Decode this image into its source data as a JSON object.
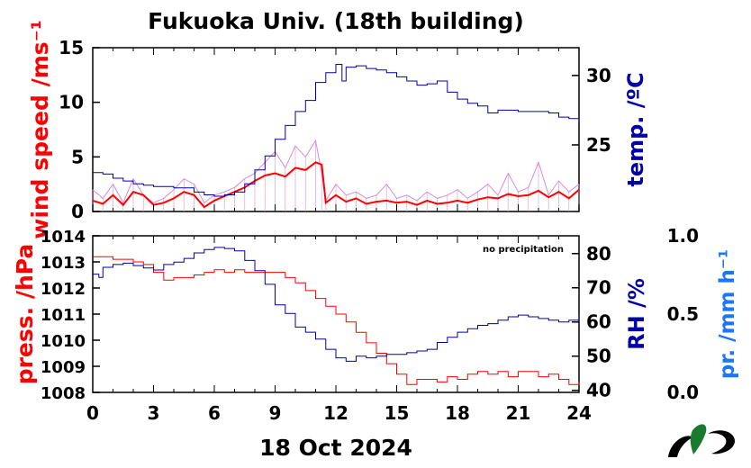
{
  "title": "Fukuoka Univ. (18th building)",
  "xlabel": "18 Oct 2024",
  "notice": "no precipitation",
  "colors": {
    "wind_label": "#ff0000",
    "wind_raw": "#d88ad8",
    "wind_mean": "#ff0000",
    "temp": "#0000aa",
    "press": "#ff0000",
    "rh": "#0000aa",
    "precip": "#1a75ff"
  },
  "chart_data": [
    {
      "type": "line",
      "panel": "top",
      "x_ticks": [
        0,
        3,
        6,
        9,
        12,
        15,
        18,
        21,
        24
      ],
      "xlim": [
        0,
        24
      ],
      "ylabel_left": "wind speed /ms⁻¹",
      "ylim_left": [
        0,
        15
      ],
      "yticks_left": [
        0,
        5,
        10,
        15
      ],
      "ylabel_right": "temp. /ºC",
      "ylim_right": [
        20.2,
        32.0
      ],
      "yticks_right": [
        25,
        30
      ],
      "grid": false,
      "series": [
        {
          "axis": "left",
          "style": "raw",
          "x": [
            0,
            0.5,
            1,
            1.5,
            2,
            2.5,
            3,
            3.5,
            4,
            4.5,
            5,
            5.5,
            6,
            6.5,
            7,
            7.5,
            8,
            8.5,
            9,
            9.5,
            10,
            10.5,
            11,
            11.3,
            11.5,
            12,
            12.5,
            13,
            13.5,
            14,
            14.5,
            15,
            15.5,
            16,
            16.5,
            17,
            17.5,
            18,
            18.5,
            19,
            19.5,
            20,
            20.5,
            21,
            21.5,
            22,
            22.5,
            23,
            23.5,
            24
          ],
          "y": [
            2.0,
            1.2,
            2.5,
            0.8,
            3.0,
            1.5,
            0.8,
            1.2,
            2.0,
            3.0,
            2.5,
            0.8,
            1.5,
            1.8,
            2.2,
            3.0,
            3.5,
            4.5,
            5.5,
            4.0,
            6.0,
            5.0,
            6.5,
            3.5,
            1.0,
            2.5,
            1.5,
            1.8,
            1.2,
            1.5,
            2.5,
            1.2,
            1.5,
            1.0,
            1.8,
            1.2,
            1.5,
            2.0,
            1.2,
            1.8,
            2.5,
            1.5,
            3.5,
            1.8,
            2.2,
            4.5,
            1.5,
            2.8,
            1.8,
            2.5
          ]
        },
        {
          "axis": "left",
          "style": "mean",
          "x": [
            0,
            0.5,
            1,
            1.5,
            2,
            2.5,
            3,
            3.5,
            4,
            4.5,
            5,
            5.5,
            6,
            6.5,
            7,
            7.5,
            8,
            8.5,
            9,
            9.5,
            10,
            10.5,
            11,
            11.3,
            11.5,
            12,
            12.5,
            13,
            13.5,
            14,
            14.5,
            15,
            15.5,
            16,
            16.5,
            17,
            17.5,
            18,
            18.5,
            19,
            19.5,
            20,
            20.5,
            21,
            21.5,
            22,
            22.5,
            23,
            23.5,
            24
          ],
          "y": [
            1.0,
            0.7,
            1.5,
            0.6,
            1.8,
            1.5,
            0.6,
            0.8,
            1.2,
            1.8,
            1.5,
            0.4,
            1.0,
            1.4,
            1.8,
            2.2,
            2.8,
            3.3,
            3.5,
            3.2,
            4.0,
            3.8,
            4.5,
            4.3,
            0.8,
            1.5,
            0.9,
            1.2,
            0.7,
            0.9,
            1.0,
            0.8,
            0.9,
            0.6,
            1.0,
            0.7,
            0.8,
            1.0,
            0.8,
            1.1,
            1.3,
            1.2,
            1.6,
            1.4,
            1.5,
            1.9,
            1.3,
            1.8,
            1.2,
            2.0
          ]
        },
        {
          "axis": "right",
          "style": "temp",
          "x": [
            0,
            0.5,
            1,
            1.5,
            2,
            2.5,
            3,
            3.5,
            4,
            4.5,
            5,
            5.5,
            6,
            6.5,
            7,
            7.5,
            8,
            8.5,
            9,
            9.5,
            10,
            10.5,
            11,
            11.5,
            12,
            12.3,
            12.5,
            13,
            13.5,
            14,
            14.5,
            15,
            15.5,
            16,
            16.5,
            17,
            17.5,
            18,
            18.5,
            19,
            19.5,
            20,
            20.5,
            21,
            21.5,
            22,
            22.5,
            23,
            23.5,
            24
          ],
          "y": [
            23.0,
            22.9,
            22.6,
            22.4,
            22.2,
            22.1,
            22.0,
            22.0,
            21.9,
            21.9,
            21.6,
            21.4,
            21.3,
            21.4,
            21.6,
            22.2,
            23.2,
            24.2,
            25.4,
            26.4,
            27.4,
            28.2,
            29.5,
            30.2,
            30.8,
            29.6,
            30.6,
            30.7,
            30.5,
            30.4,
            30.2,
            29.9,
            29.6,
            29.3,
            29.4,
            29.6,
            28.8,
            28.3,
            28.0,
            27.8,
            27.3,
            27.5,
            27.5,
            27.4,
            27.4,
            27.4,
            27.3,
            27.0,
            26.9,
            26.6
          ]
        }
      ]
    },
    {
      "type": "line",
      "panel": "bottom",
      "x_ticks": [
        0,
        3,
        6,
        9,
        12,
        15,
        18,
        21,
        24
      ],
      "xlim": [
        0,
        24
      ],
      "ylabel_left": "press. /hPa",
      "ylim_left": [
        1008,
        1014
      ],
      "yticks_left": [
        1008,
        1009,
        1010,
        1011,
        1012,
        1013,
        1014
      ],
      "ylabel_right": "RH /%",
      "ylim_right": [
        39.4,
        85.2
      ],
      "yticks_right": [
        40,
        50,
        60,
        70,
        80
      ],
      "ylabel_far_right": "pr. /mm h⁻¹",
      "ylim_far_right": [
        0.0,
        1.0
      ],
      "yticks_far_right": [
        "0.0",
        "0.5",
        "1.0"
      ],
      "grid": false,
      "series": [
        {
          "axis": "left",
          "style": "press",
          "x": [
            0,
            0.5,
            1,
            1.5,
            2,
            2.5,
            3,
            3.5,
            4,
            4.5,
            5,
            5.5,
            6,
            6.5,
            7,
            7.5,
            8,
            8.5,
            9,
            9.5,
            10,
            10.5,
            11,
            11.5,
            12,
            12.5,
            13,
            13.5,
            14,
            14.5,
            15,
            15.5,
            16,
            16.5,
            17,
            17.5,
            18,
            18.5,
            19,
            19.5,
            20,
            20.5,
            21,
            21.5,
            22,
            22.5,
            23,
            23.5,
            24
          ],
          "y": [
            1013.2,
            1013.2,
            1013.1,
            1013.1,
            1013.0,
            1012.9,
            1012.6,
            1012.3,
            1012.4,
            1012.4,
            1012.5,
            1012.6,
            1012.7,
            1012.6,
            1012.7,
            1012.6,
            1012.6,
            1012.6,
            1012.6,
            1012.4,
            1012.2,
            1011.9,
            1011.6,
            1011.3,
            1011.0,
            1010.7,
            1010.3,
            1009.9,
            1009.5,
            1009.1,
            1008.7,
            1008.3,
            1008.5,
            1008.5,
            1008.4,
            1008.6,
            1008.5,
            1008.7,
            1008.8,
            1008.7,
            1008.8,
            1008.6,
            1008.8,
            1008.8,
            1008.6,
            1008.7,
            1008.5,
            1008.3,
            1008.4
          ]
        },
        {
          "axis": "right",
          "style": "rh",
          "x": [
            0,
            0.3,
            0.5,
            1,
            1.5,
            2,
            2.5,
            3,
            3.5,
            4,
            4.5,
            5,
            5.5,
            6,
            6.5,
            7,
            7.5,
            8,
            8.5,
            9,
            9.5,
            10,
            10.5,
            11,
            11.5,
            12,
            12.5,
            13,
            13.5,
            14,
            14.5,
            15,
            15.5,
            16,
            16.5,
            17,
            17.5,
            18,
            18.5,
            19,
            19.5,
            20,
            20.5,
            21,
            21.5,
            22,
            22.5,
            23,
            23.5,
            24
          ],
          "y": [
            74.0,
            73.0,
            76.0,
            76.8,
            77.2,
            76.5,
            75.8,
            75.2,
            76.8,
            77.5,
            78.6,
            80.2,
            81.2,
            81.8,
            81.5,
            80.8,
            78.0,
            75.0,
            71.0,
            65.0,
            62.5,
            58.5,
            57.0,
            55.0,
            52.0,
            49.5,
            48.5,
            50.0,
            49.5,
            50.0,
            50.5,
            50.5,
            51.0,
            51.5,
            52.0,
            54.0,
            55.5,
            57.0,
            58.0,
            59.0,
            59.5,
            60.5,
            61.5,
            62.0,
            61.5,
            61.0,
            60.5,
            60.0,
            60.5,
            62.0
          ]
        }
      ]
    }
  ]
}
